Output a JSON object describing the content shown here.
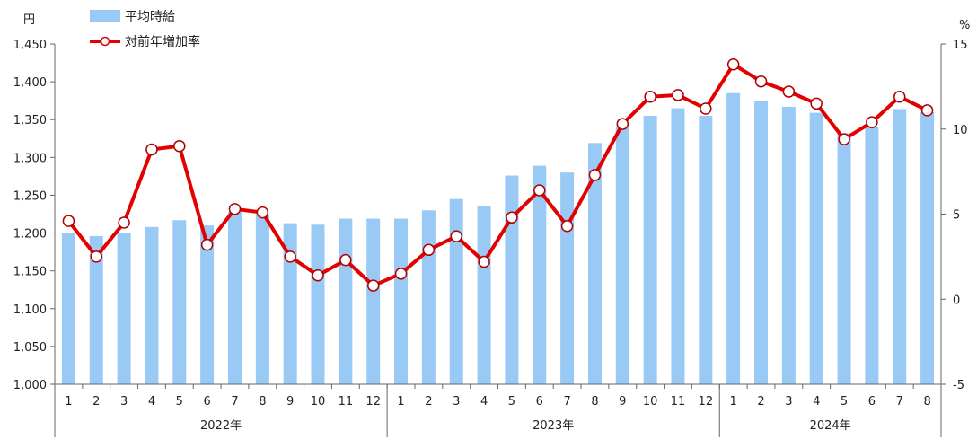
{
  "chart_data": {
    "type": "bar+line",
    "units": {
      "left": "円",
      "right": "%"
    },
    "legend": {
      "bar": "平均時給",
      "line": "対前年増加率",
      "position": "top-left"
    },
    "categories": [
      "1",
      "2",
      "3",
      "4",
      "5",
      "6",
      "7",
      "8",
      "9",
      "10",
      "11",
      "12",
      "1",
      "2",
      "3",
      "4",
      "5",
      "6",
      "7",
      "8",
      "9",
      "10",
      "11",
      "12",
      "1",
      "2",
      "3",
      "4",
      "5",
      "6",
      "7",
      "8"
    ],
    "years": [
      {
        "label": "2022年",
        "count": 12
      },
      {
        "label": "2023年",
        "count": 12
      },
      {
        "label": "2024年",
        "count": 8
      }
    ],
    "series": [
      {
        "name": "平均時給",
        "type": "bar",
        "axis": "left",
        "color": "#99c9f5",
        "values": [
          1200,
          1196,
          1200,
          1208,
          1217,
          1210,
          1228,
          1225,
          1213,
          1211,
          1219,
          1219,
          1219,
          1230,
          1245,
          1235,
          1276,
          1289,
          1280,
          1319,
          1341,
          1355,
          1365,
          1355,
          1385,
          1375,
          1367,
          1359,
          1332,
          1340,
          1364,
          1360
        ]
      },
      {
        "name": "対前年増加率",
        "type": "line",
        "axis": "right",
        "color": "#e20000",
        "values": [
          4.6,
          2.5,
          4.5,
          8.8,
          9.0,
          3.2,
          5.3,
          5.1,
          2.5,
          1.4,
          2.3,
          0.8,
          1.5,
          2.9,
          3.7,
          2.2,
          4.8,
          6.4,
          4.3,
          7.3,
          10.3,
          11.9,
          12.0,
          11.2,
          13.8,
          12.8,
          12.2,
          11.5,
          9.4,
          10.4,
          11.9,
          11.1
        ]
      }
    ],
    "yAxisLeft": {
      "min": 1000,
      "max": 1450,
      "step": 50,
      "ticks": [
        "1,000",
        "1,050",
        "1,100",
        "1,150",
        "1,200",
        "1,250",
        "1,300",
        "1,350",
        "1,400",
        "1,450"
      ]
    },
    "yAxisRight": {
      "min": -5,
      "max": 15,
      "step": 5,
      "ticks": [
        "-5",
        "0",
        "5",
        "10",
        "15"
      ]
    },
    "grid": false
  }
}
